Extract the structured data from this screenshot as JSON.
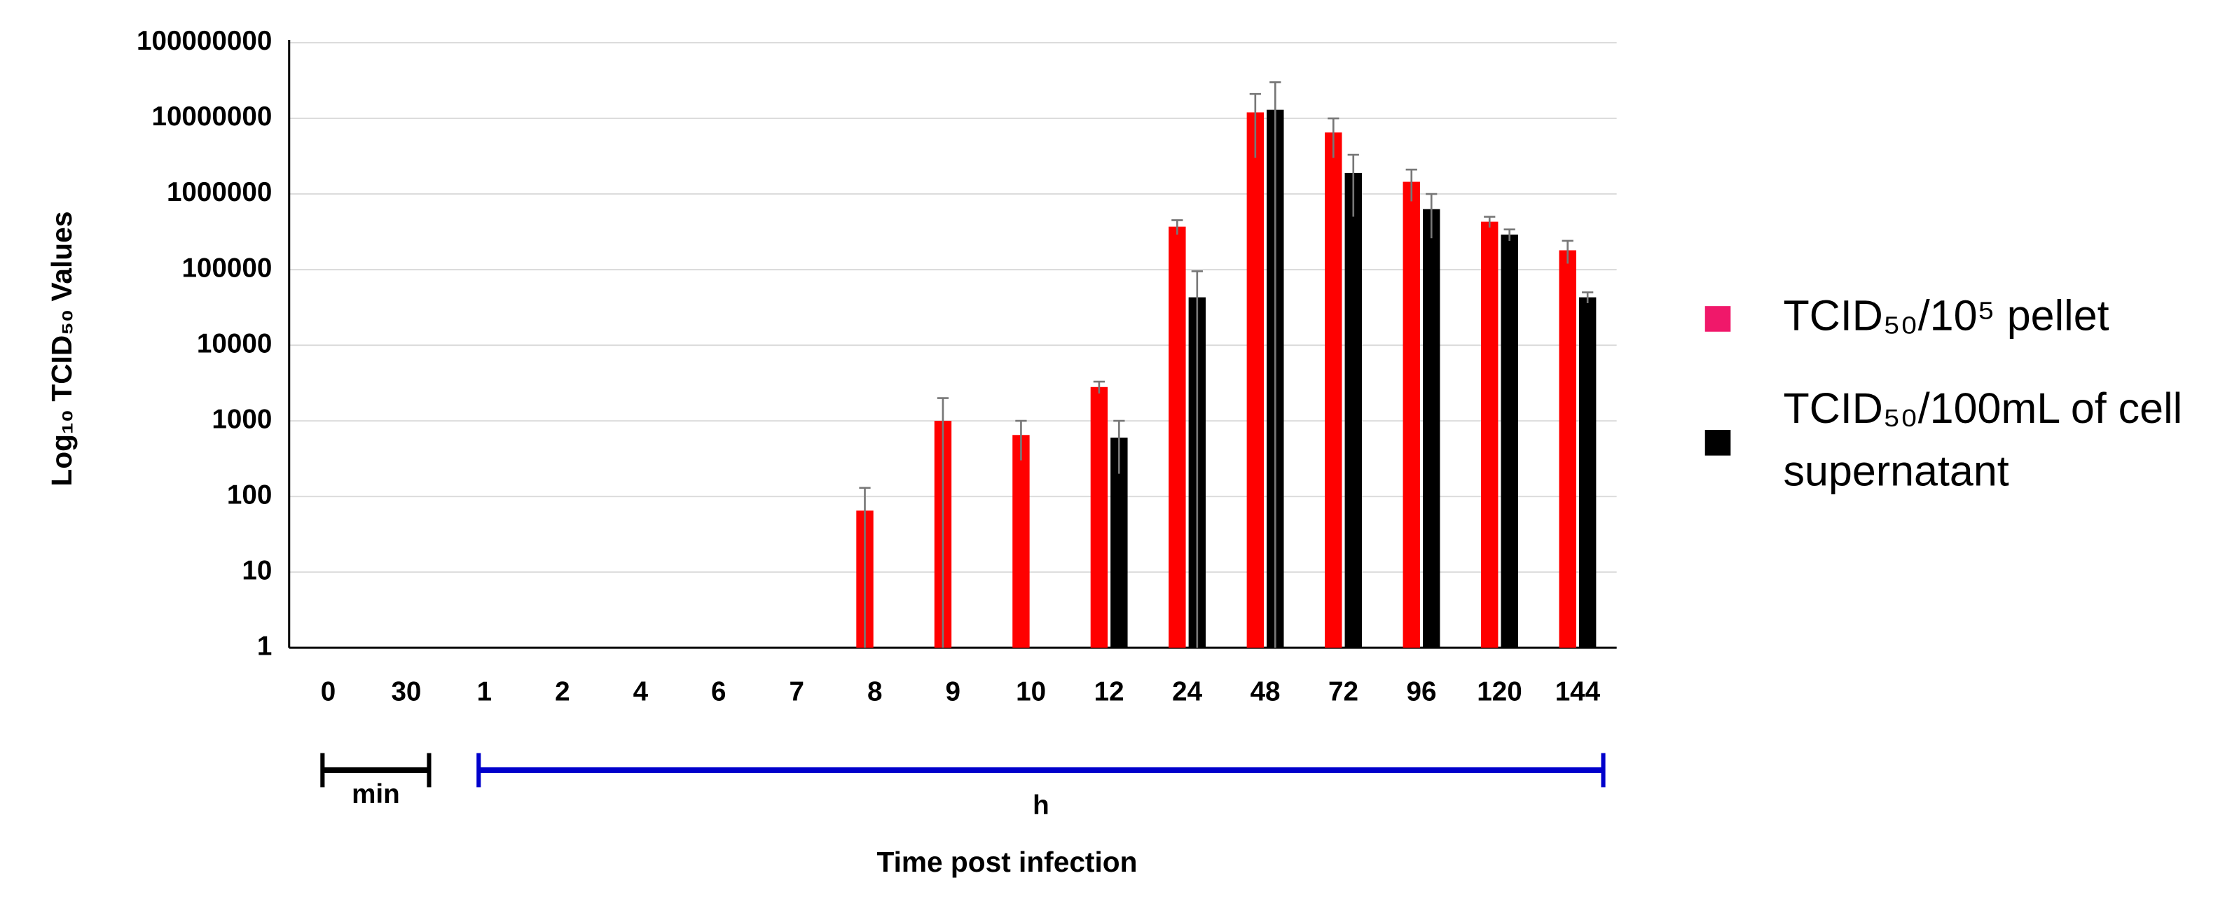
{
  "chart_data": {
    "type": "bar",
    "y_label": "Log₁₀ TCID₅₀ Values",
    "x_label": "Time post infection",
    "categories": [
      "0",
      "30",
      "1",
      "2",
      "4",
      "6",
      "7",
      "8",
      "9",
      "10",
      "12",
      "24",
      "48",
      "72",
      "96",
      "120",
      "144"
    ],
    "series": [
      {
        "name": "TCID₅₀/10⁵ pellet",
        "color": "#ff0000",
        "legend_color": "#f0186a",
        "values": [
          null,
          null,
          null,
          null,
          null,
          null,
          null,
          65,
          1000,
          650,
          2800,
          370000,
          12000000,
          6500000,
          1450000,
          430000,
          180000
        ],
        "errors": [
          null,
          null,
          null,
          null,
          null,
          null,
          null,
          65,
          1000,
          350,
          500,
          80000,
          9000000,
          3500000,
          650000,
          70000,
          60000
        ]
      },
      {
        "name": "TCID₅₀/100mL of cell supernatant",
        "color": "#000000",
        "legend_color": "#000000",
        "values": [
          null,
          null,
          null,
          null,
          null,
          null,
          null,
          null,
          null,
          null,
          600,
          43000,
          13000000,
          1900000,
          630000,
          290000,
          43000
        ],
        "errors": [
          null,
          null,
          null,
          null,
          null,
          null,
          null,
          null,
          null,
          null,
          400,
          52000,
          17000000,
          1400000,
          370000,
          50000,
          7000
        ]
      }
    ],
    "log_scale": true,
    "ylim": [
      1,
      100000000
    ],
    "yticks": [
      1,
      10,
      100,
      1000,
      10000,
      100000,
      1000000,
      10000000,
      100000000
    ],
    "grid": true,
    "legend": "right",
    "groups": [
      {
        "label": "min",
        "from": "0",
        "to": "30",
        "color": "#000000"
      },
      {
        "label": "h",
        "from": "1",
        "to": "144",
        "color": "#0000cc"
      }
    ]
  }
}
